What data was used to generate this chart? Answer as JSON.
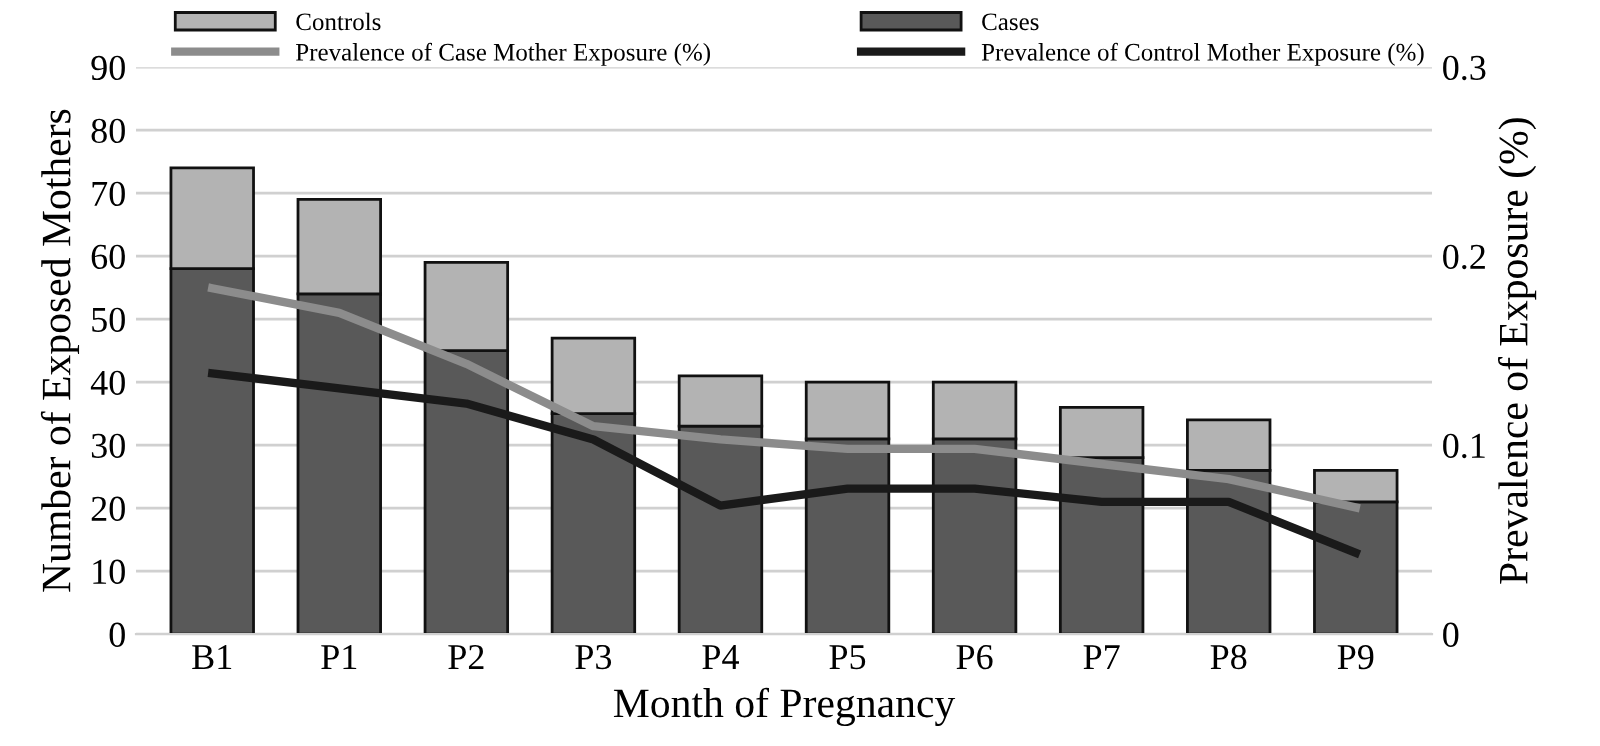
{
  "chart_data": {
    "type": "bar",
    "stacked": true,
    "xlabel": "Month of Pregnancy",
    "ylabel": "Number of Exposed Mothers",
    "y2label": "Prevalence of Exposure (%)",
    "categories": [
      "B1",
      "P1",
      "P2",
      "P3",
      "P4",
      "P5",
      "P6",
      "P7",
      "P8",
      "P9"
    ],
    "series": [
      {
        "name": "Cases",
        "color": "#595959",
        "values": [
          58,
          54,
          45,
          35,
          33,
          31,
          31,
          28,
          26,
          21
        ]
      },
      {
        "name": "Controls",
        "color": "#b3b3b3",
        "values": [
          16,
          15,
          14,
          12,
          8,
          9,
          9,
          8,
          8,
          5
        ]
      },
      {
        "name": "Prevalence of Case Mother Exposure (%)",
        "type": "line",
        "axis": "y2",
        "color": "#8c8c8c",
        "values": [
          0.183,
          0.17,
          0.143,
          0.11,
          0.103,
          0.098,
          0.098,
          0.09,
          0.082,
          0.067
        ]
      },
      {
        "name": "Prevalence of Control Mother Exposure (%)",
        "type": "line",
        "axis": "y2",
        "color": "#1a1a1a",
        "values": [
          0.138,
          0.13,
          0.122,
          0.103,
          0.068,
          0.077,
          0.077,
          0.07,
          0.07,
          0.043
        ]
      }
    ],
    "ylim": [
      0,
      90
    ],
    "yticks": [
      0,
      10,
      20,
      30,
      40,
      50,
      60,
      70,
      80,
      90
    ],
    "y2lim": [
      0,
      0.3
    ],
    "y2ticks": [
      0,
      0.1,
      0.2,
      0.3
    ],
    "grid": "y",
    "legend": "top",
    "marker": "none",
    "line_style": "solid"
  }
}
